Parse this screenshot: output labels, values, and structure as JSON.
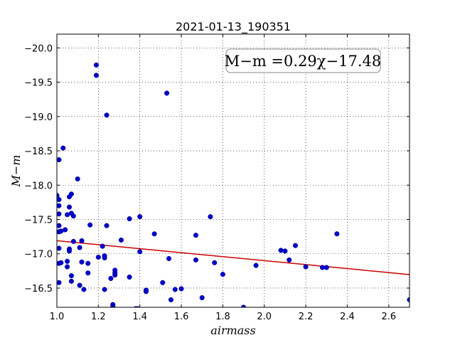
{
  "chart_data": {
    "type": "scatter",
    "title": "2021-01-13_190351",
    "xlabel": "airmass",
    "ylabel": "M−m",
    "xlim": [
      1.0,
      2.7
    ],
    "ylim": [
      -20.2,
      -16.22
    ],
    "y_inverted": true,
    "grid": true,
    "xticks": [
      1.0,
      1.2,
      1.4,
      1.6,
      1.8,
      2.0,
      2.2,
      2.4,
      2.6
    ],
    "xtick_labels": [
      "1.0",
      "1.2",
      "1.4",
      "1.6",
      "1.8",
      "2.0",
      "2.2",
      "2.4",
      "2.6"
    ],
    "yticks": [
      -16.5,
      -17.0,
      -17.5,
      -18.0,
      -18.5,
      -19.0,
      -19.5,
      -20.0
    ],
    "ytick_labels": [
      "−16.5",
      "−17.0",
      "−17.5",
      "−18.0",
      "−18.5",
      "−19.0",
      "−19.5",
      "−20.0"
    ],
    "annotation": "M−m =0.29χ−17.48",
    "fit": {
      "slope": 0.29,
      "intercept": -17.48,
      "color": "#cc0000"
    },
    "point_color": "#0000cc",
    "points": [
      [
        1.0,
        -17.85
      ],
      [
        1.01,
        -18.37
      ],
      [
        1.01,
        -16.58
      ],
      [
        1.01,
        -16.86
      ],
      [
        1.01,
        -17.08
      ],
      [
        1.01,
        -17.32
      ],
      [
        1.01,
        -17.41
      ],
      [
        1.01,
        -17.58
      ],
      [
        1.01,
        -17.7
      ],
      [
        1.01,
        -17.79
      ],
      [
        1.02,
        -16.87
      ],
      [
        1.02,
        -17.33
      ],
      [
        1.03,
        -18.54
      ],
      [
        1.04,
        -17.35
      ],
      [
        1.05,
        -16.89
      ],
      [
        1.05,
        -17.57
      ],
      [
        1.05,
        -16.81
      ],
      [
        1.06,
        -17.07
      ],
      [
        1.06,
        -17.68
      ],
      [
        1.06,
        -17.83
      ],
      [
        1.06,
        -17.04
      ],
      [
        1.07,
        -16.6
      ],
      [
        1.07,
        -16.68
      ],
      [
        1.07,
        -17.87
      ],
      [
        1.07,
        -17.59
      ],
      [
        1.08,
        -17.55
      ],
      [
        1.08,
        -17.18
      ],
      [
        1.1,
        -18.09
      ],
      [
        1.11,
        -17.09
      ],
      [
        1.11,
        -16.54
      ],
      [
        1.12,
        -16.88
      ],
      [
        1.12,
        -17.19
      ],
      [
        1.13,
        -16.48
      ],
      [
        1.15,
        -16.72
      ],
      [
        1.15,
        -16.86
      ],
      [
        1.16,
        -17.42
      ],
      [
        1.19,
        -19.6
      ],
      [
        1.19,
        -19.75
      ],
      [
        1.2,
        -16.95
      ],
      [
        1.22,
        -17.11
      ],
      [
        1.23,
        -16.48
      ],
      [
        1.23,
        -16.94
      ],
      [
        1.23,
        -16.97
      ],
      [
        1.24,
        -19.02
      ],
      [
        1.24,
        -17.41
      ],
      [
        1.26,
        -16.64
      ],
      [
        1.27,
        -16.26
      ],
      [
        1.27,
        -16.23
      ],
      [
        1.28,
        -16.69
      ],
      [
        1.28,
        -16.72
      ],
      [
        1.28,
        -16.76
      ],
      [
        1.31,
        -17.2
      ],
      [
        1.35,
        -16.66
      ],
      [
        1.35,
        -17.51
      ],
      [
        1.38,
        -16.2
      ],
      [
        1.39,
        -16.2
      ],
      [
        1.4,
        -17.54
      ],
      [
        1.4,
        -17.03
      ],
      [
        1.43,
        -16.45
      ],
      [
        1.43,
        -16.47
      ],
      [
        1.47,
        -17.29
      ],
      [
        1.51,
        -16.58
      ],
      [
        1.53,
        -19.34
      ],
      [
        1.54,
        -16.93
      ],
      [
        1.55,
        -16.33
      ],
      [
        1.57,
        -16.48
      ],
      [
        1.6,
        -16.49
      ],
      [
        1.67,
        -17.27
      ],
      [
        1.67,
        -16.91
      ],
      [
        1.7,
        -16.36
      ],
      [
        1.74,
        -17.54
      ],
      [
        1.76,
        -16.87
      ],
      [
        1.8,
        -16.7
      ],
      [
        1.9,
        -16.22
      ],
      [
        1.96,
        -16.83
      ],
      [
        2.08,
        -17.05
      ],
      [
        2.1,
        -17.04
      ],
      [
        2.12,
        -16.91
      ],
      [
        2.15,
        -17.12
      ],
      [
        2.2,
        -16.81
      ],
      [
        2.28,
        -16.8
      ],
      [
        2.3,
        -16.8
      ],
      [
        2.35,
        -17.29
      ],
      [
        2.7,
        -16.33
      ]
    ]
  }
}
